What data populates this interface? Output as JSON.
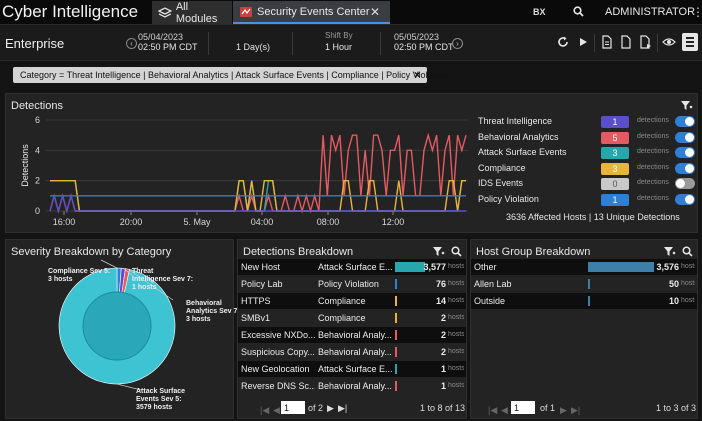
{
  "top": {
    "app_title": "Cyber Intelligence",
    "tab_all": "All Modules",
    "tab_security": "Security Events Center",
    "tab_close": "✕",
    "bx": "BX",
    "user": "ADMINISTRATOR"
  },
  "bar2": {
    "enterprise": "Enterprise",
    "start_date": "05/04/2023",
    "start_time": "02:50 PM CDT",
    "range": "1 Day(s)",
    "shift_label": "Shift By",
    "shift_value": "1 Hour",
    "end_date": "05/05/2023",
    "end_time": "02:50 PM CDT"
  },
  "filter": {
    "text": "Category = Threat Intelligence | Behavioral Analytics | Attack Surface Events | Compliance | Policy Violation",
    "close": "✕"
  },
  "detections": {
    "title": "Detections",
    "summary": "3636 Affected Hosts | 13 Unique Detections",
    "legend": [
      {
        "name": "Threat Intelligence",
        "count": "1",
        "unit": "detections",
        "color": "#5a4fc8",
        "on": true
      },
      {
        "name": "Behavioral Analytics",
        "count": "5",
        "unit": "detections",
        "color": "#e45a62",
        "on": true
      },
      {
        "name": "Attack Surface Events",
        "count": "3",
        "unit": "detections",
        "color": "#28a6ad",
        "on": true
      },
      {
        "name": "Compliance",
        "count": "3",
        "unit": "detections",
        "color": "#e8b53a",
        "on": true
      },
      {
        "name": "IDS Events",
        "count": "0",
        "unit": "detections",
        "color": "#c9c9c9",
        "on": false
      },
      {
        "name": "Policy Violation",
        "count": "1",
        "unit": "detections",
        "color": "#2f7fd6",
        "on": true
      }
    ]
  },
  "chart_data": {
    "type": "line",
    "ylabel": "Detections",
    "ylim": [
      0,
      6
    ],
    "yticks": [
      "0",
      "2",
      "4",
      "6"
    ],
    "xticks": [
      "16:00",
      "20:00",
      "5. May",
      "04:00",
      "08:00",
      "12:00"
    ],
    "grid": true,
    "series": [
      {
        "name": "Behavioral Analytics",
        "color": "#e45a62",
        "values": [
          0,
          1,
          0,
          1,
          0,
          1,
          0,
          0,
          0,
          0,
          0,
          0,
          0,
          0,
          0,
          0,
          0,
          0,
          0,
          0,
          0,
          0,
          0,
          0,
          0,
          0,
          0,
          0,
          0,
          0,
          0,
          0,
          0,
          0,
          0,
          0,
          0,
          0,
          0,
          0,
          0,
          0,
          0,
          0,
          0,
          1,
          0,
          0,
          1,
          0,
          0,
          0,
          1,
          0,
          0,
          0,
          1,
          0,
          0,
          1,
          0,
          1,
          0,
          1,
          0,
          5,
          1,
          5,
          4,
          5,
          1,
          4,
          5,
          5,
          1,
          4,
          1,
          5,
          5,
          4,
          1,
          4,
          4,
          5,
          1,
          4,
          4,
          1,
          1,
          4,
          5,
          4,
          5,
          1,
          4,
          5,
          1,
          5,
          4,
          5
        ]
      },
      {
        "name": "Attack Surface Events",
        "color": "#28a6ad",
        "values": [
          2,
          2,
          2,
          2,
          2,
          2,
          2,
          0,
          0,
          0,
          0,
          0,
          0,
          0,
          0,
          0,
          0,
          0,
          0,
          0,
          0,
          0,
          0,
          0,
          0,
          0,
          0,
          0,
          0,
          0,
          0,
          0,
          0,
          0,
          0,
          0,
          0,
          0,
          0,
          0,
          0,
          0,
          0,
          0,
          0,
          2,
          2,
          0,
          2,
          0,
          0,
          0,
          2,
          2,
          0,
          0,
          0,
          0,
          0,
          0,
          0,
          0,
          0,
          0,
          0,
          0,
          0,
          0,
          0,
          0,
          0,
          0,
          0,
          0,
          0,
          0,
          0,
          0,
          0,
          0,
          0,
          0,
          0,
          0,
          0,
          0,
          0,
          0,
          0,
          0,
          0,
          0,
          0,
          0,
          0,
          0,
          0,
          0,
          2,
          2
        ]
      },
      {
        "name": "Compliance",
        "color": "#e8b53a",
        "values": [
          2,
          2,
          2,
          2,
          2,
          2,
          2,
          0,
          0,
          0,
          0,
          0,
          0,
          0,
          0,
          0,
          0,
          0,
          0,
          0,
          0,
          0,
          0,
          0,
          0,
          0,
          0,
          0,
          0,
          0,
          0,
          0,
          0,
          0,
          0,
          0,
          0,
          0,
          0,
          0,
          0,
          0,
          0,
          0,
          0,
          2,
          2,
          0,
          2,
          0,
          0,
          2,
          2,
          2,
          0,
          0,
          0,
          0,
          0,
          0,
          0,
          0,
          0,
          0,
          0,
          0,
          0,
          0,
          0,
          0,
          2,
          2,
          0,
          0,
          0,
          0,
          2,
          2,
          0,
          0,
          0,
          0,
          0,
          2,
          0,
          0,
          0,
          0,
          0,
          0,
          0,
          0,
          0,
          0,
          0,
          2,
          2,
          0,
          2,
          2
        ]
      },
      {
        "name": "Policy Violation",
        "color": "#2f7fd6",
        "values": [
          1,
          1,
          1,
          1,
          1,
          1,
          1,
          1,
          1,
          1,
          1,
          1,
          1,
          1,
          1,
          1,
          1,
          1,
          1,
          1,
          1,
          1,
          1,
          1,
          1,
          1,
          1,
          1,
          1,
          1,
          1,
          1,
          1,
          1,
          1,
          1,
          1,
          1,
          1,
          1,
          1,
          1,
          1,
          1,
          1,
          1,
          1,
          1,
          1,
          1,
          1,
          1,
          1,
          1,
          1,
          1,
          1,
          1,
          1,
          1,
          1,
          1,
          1,
          1,
          1,
          1,
          1,
          1,
          1,
          1,
          1,
          1,
          1,
          1,
          1,
          1,
          1,
          1,
          1,
          1,
          1,
          1,
          1,
          1,
          1,
          1,
          1,
          1,
          1,
          1,
          1,
          1,
          1,
          1,
          1,
          1,
          1,
          1,
          1,
          1
        ]
      },
      {
        "name": "Threat Intelligence",
        "color": "#5a4fc8",
        "values": [
          0,
          1,
          0,
          1,
          0,
          1,
          0,
          0,
          0,
          0,
          0,
          0,
          0,
          0,
          0,
          0,
          0,
          0,
          0,
          0,
          0,
          0,
          0,
          0,
          0,
          0,
          0,
          0,
          0,
          0,
          0,
          0,
          0,
          0,
          0,
          0,
          0,
          0,
          0,
          0,
          0,
          0,
          0,
          0,
          0,
          0,
          0,
          0,
          0,
          0,
          0,
          0,
          0,
          0,
          0,
          0,
          0,
          0,
          0,
          0,
          0,
          0,
          0,
          0,
          0,
          0,
          0,
          0,
          0,
          0,
          0,
          0,
          0,
          0,
          0,
          0,
          0,
          0,
          0,
          0,
          0,
          0,
          0,
          0,
          0,
          0,
          0,
          0,
          0,
          0,
          0,
          0,
          0,
          0,
          0,
          0,
          0,
          0,
          0,
          0
        ]
      }
    ]
  },
  "severity": {
    "title": "Severity Breakdown by Category",
    "slices": [
      {
        "label": "Compliance Sev 5: 3 hosts",
        "line1": "Compliance Sev 5:",
        "line2": "3 hosts",
        "value": 3,
        "color": "#2f7fd6"
      },
      {
        "label": "Threat Intelligence Sev 7: 1 hosts",
        "line1": "Threat",
        "line2": "Intelligence Sev 7:",
        "line3": "1 hosts",
        "value": 1,
        "color": "#5a4fc8"
      },
      {
        "label": "Behavioral Analytics Sev 7: 3 hosts",
        "line1": "Behavioral",
        "line2": "Analytics Sev 7:",
        "line3": "3 hosts",
        "value": 3,
        "color": "#e45a62"
      },
      {
        "label": "Attack Surface Events Sev 5: 3579 hosts",
        "line1": "Attack Surface",
        "line2": "Events Sev 5:",
        "line3": "3579 hosts",
        "value": 3579,
        "color": "#3ec3d3"
      }
    ]
  },
  "det_breakdown": {
    "title": "Detections Breakdown",
    "rows": [
      {
        "name": "New Host",
        "cat": "Attack Surface E...",
        "value": "3,577",
        "num": 3577,
        "unit": "hosts",
        "color": "#28a6ad"
      },
      {
        "name": "Policy Lab",
        "cat": "Policy Violation",
        "value": "76",
        "num": 76,
        "unit": "hosts",
        "color": "#2f7fd6"
      },
      {
        "name": "HTTPS",
        "cat": "Compliance",
        "value": "14",
        "num": 14,
        "unit": "hosts",
        "color": "#e8b53a"
      },
      {
        "name": "SMBv1",
        "cat": "Compliance",
        "value": "2",
        "num": 2,
        "unit": "hosts",
        "color": "#e8b53a"
      },
      {
        "name": "Excessive NXDo...",
        "cat": "Behavioral Analy...",
        "value": "2",
        "num": 2,
        "unit": "hosts",
        "color": "#e45a62"
      },
      {
        "name": "Suspicious Copy...",
        "cat": "Behavioral Analy...",
        "value": "2",
        "num": 2,
        "unit": "hosts",
        "color": "#e45a62"
      },
      {
        "name": "New Geolocation",
        "cat": "Attack Surface E...",
        "value": "1",
        "num": 1,
        "unit": "hosts",
        "color": "#28a6ad"
      },
      {
        "name": "Reverse DNS Sc...",
        "cat": "Behavioral Analy...",
        "value": "1",
        "num": 1,
        "unit": "hosts",
        "color": "#e45a62"
      }
    ],
    "page": "1",
    "of": "of 2",
    "range": "1 to 8 of 13"
  },
  "host_breakdown": {
    "title": "Host Group Breakdown",
    "rows": [
      {
        "name": "Other",
        "value": "3,576",
        "num": 3576,
        "unit": "hosts",
        "color": "#3d7fa8"
      },
      {
        "name": "Allen Lab",
        "value": "50",
        "num": 50,
        "unit": "hosts",
        "color": "#3d7fa8"
      },
      {
        "name": "Outside",
        "value": "10",
        "num": 10,
        "unit": "hosts",
        "color": "#3d7fa8"
      }
    ],
    "page": "1",
    "of": "of 1",
    "range": "1 to 3 of 3"
  }
}
